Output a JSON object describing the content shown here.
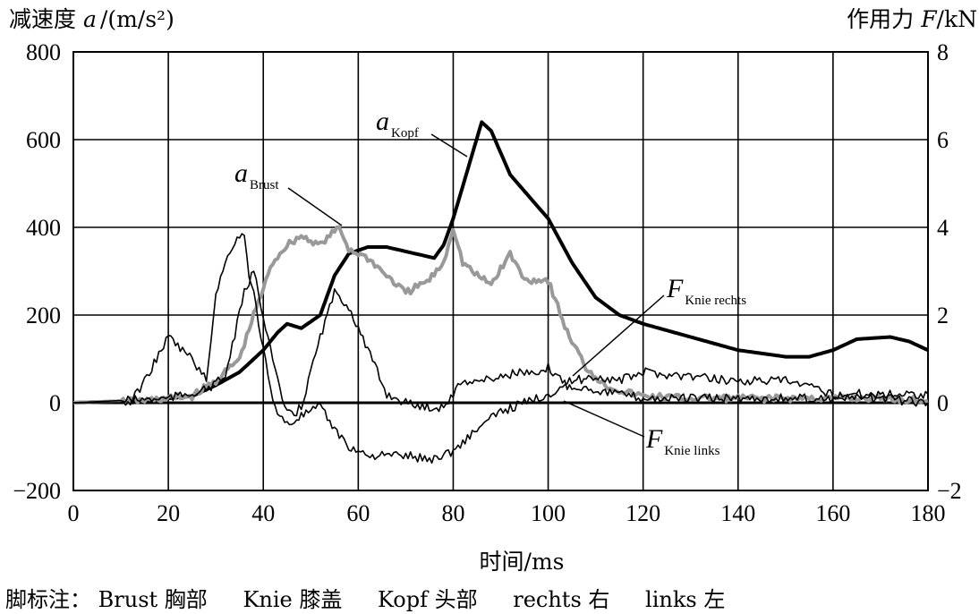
{
  "chart_data": {
    "type": "line",
    "y_left_title": "减速度 a /(m/s²)",
    "y_left_title_parts": {
      "cn": "减速度",
      "var": "a",
      "unit": "/(m/s²)"
    },
    "y_right_title": "作用力 F/kN",
    "y_right_title_parts": {
      "cn": "作用力",
      "var": "F",
      "unit": "/kN"
    },
    "x_title": "时间/ms",
    "xlim": [
      0,
      180
    ],
    "ylim_left": [
      -200,
      800
    ],
    "ylim_right": [
      -2,
      8
    ],
    "x_ticks": [
      "0",
      "20",
      "40",
      "60",
      "80",
      "100",
      "120",
      "140",
      "160",
      "180"
    ],
    "y_left_ticks": [
      "800",
      "600",
      "400",
      "200",
      "0",
      "−200"
    ],
    "y_right_ticks": [
      "8",
      "6",
      "4",
      "2",
      "0",
      "−2"
    ],
    "grid": true,
    "series": [
      {
        "name": "aKopf",
        "label_main": "a",
        "label_sub": "Kopf",
        "axis": "left",
        "color": "#000000",
        "style": "thick",
        "x": [
          0,
          15,
          25,
          30,
          35,
          40,
          43,
          45,
          48,
          52,
          55,
          58,
          62,
          66,
          72,
          76,
          78,
          80,
          83,
          86,
          88,
          92,
          96,
          100,
          105,
          110,
          115,
          120,
          130,
          140,
          150,
          155,
          160,
          165,
          172,
          176,
          180
        ],
        "y": [
          0,
          5,
          15,
          40,
          70,
          120,
          160,
          180,
          170,
          200,
          290,
          340,
          355,
          355,
          340,
          330,
          360,
          420,
          530,
          640,
          620,
          520,
          470,
          420,
          320,
          240,
          200,
          180,
          150,
          120,
          105,
          105,
          120,
          145,
          150,
          140,
          120
        ]
      },
      {
        "name": "aBrust",
        "label_main": "a",
        "label_sub": "Brust",
        "axis": "left",
        "color": "#999999",
        "style": "gray",
        "x": [
          0,
          15,
          25,
          30,
          35,
          38,
          42,
          45,
          48,
          52,
          56,
          58,
          62,
          66,
          70,
          75,
          78,
          80,
          82,
          85,
          88,
          92,
          95,
          100,
          104,
          108,
          112,
          116,
          120,
          130,
          140,
          150,
          160,
          170,
          180
        ],
        "y": [
          0,
          5,
          15,
          50,
          100,
          200,
          320,
          360,
          380,
          360,
          400,
          350,
          330,
          290,
          250,
          280,
          320,
          400,
          320,
          290,
          270,
          340,
          280,
          280,
          160,
          80,
          40,
          25,
          15,
          10,
          10,
          10,
          10,
          10,
          5
        ]
      },
      {
        "name": "FKnie rechts",
        "label_main": "F",
        "label_sub": "Knie rechts",
        "axis": "right",
        "color": "#000000",
        "style": "thin",
        "x": [
          0,
          12,
          15,
          20,
          25,
          28,
          30,
          33,
          35,
          36,
          37,
          38,
          40,
          42,
          45,
          48,
          52,
          55,
          58,
          62,
          66,
          70,
          75,
          80,
          85,
          90,
          95,
          100,
          105,
          110,
          115,
          120,
          130,
          140,
          150,
          160,
          170,
          180
        ],
        "y": [
          0,
          0,
          0.5,
          1.5,
          1.0,
          0.5,
          2.5,
          3.5,
          3.8,
          3.9,
          2.8,
          2.5,
          1.2,
          0.0,
          -0.5,
          -0.3,
          -0.1,
          -0.6,
          -1.0,
          -1.2,
          -1.2,
          -1.2,
          -1.3,
          -1.1,
          -0.6,
          -0.2,
          0.0,
          0.2,
          0.5,
          0.6,
          0.5,
          0.7,
          0.6,
          0.5,
          0.5,
          0.2,
          0.2,
          0.2
        ]
      },
      {
        "name": "FKnie links",
        "label_main": "F",
        "label_sub": "Knie links",
        "axis": "right",
        "color": "#000000",
        "style": "thin",
        "x": [
          0,
          20,
          28,
          32,
          36,
          38,
          40,
          42,
          44,
          46,
          48,
          52,
          55,
          58,
          62,
          66,
          70,
          74,
          78,
          82,
          86,
          90,
          94,
          98,
          100,
          104,
          110,
          120,
          130,
          140,
          150,
          160,
          170,
          180
        ],
        "y": [
          0,
          0.1,
          0.3,
          0.6,
          2.5,
          3.0,
          2.0,
          1.0,
          0.0,
          -0.3,
          -0.1,
          1.5,
          2.5,
          2.2,
          1.2,
          0.2,
          0.0,
          -0.1,
          -0.1,
          0.5,
          0.5,
          0.6,
          0.7,
          0.6,
          0.8,
          0.4,
          0.3,
          0.1,
          0.1,
          0.1,
          0.1,
          0.1,
          0.1,
          0.0
        ]
      }
    ]
  },
  "footnote": {
    "prefix": "脚标注：",
    "items": [
      "Brust 胸部",
      "Knie 膝盖",
      "Kopf 头部",
      "rechts 右",
      "links 左"
    ]
  }
}
